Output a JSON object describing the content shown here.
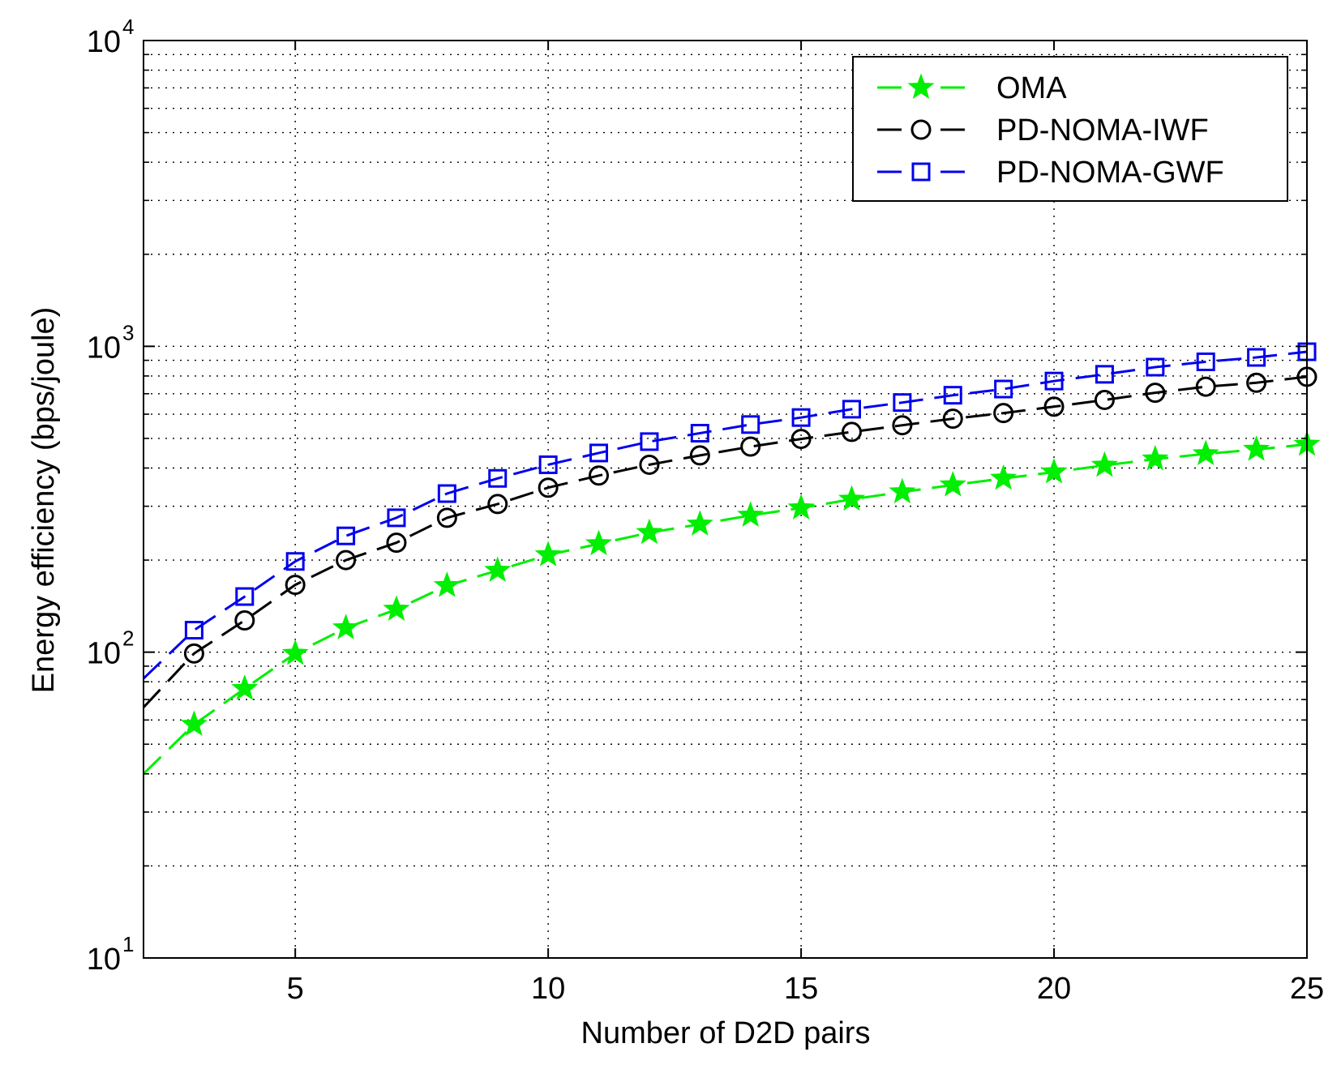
{
  "chart_data": {
    "type": "line",
    "xlabel": "Number of D2D pairs",
    "ylabel": "Energy efficiency (bps/joule)",
    "xlim": [
      2,
      25
    ],
    "ylim": [
      10,
      10000
    ],
    "yscale": "log",
    "grid": true,
    "legend_position": "top-right",
    "x_ticks": [
      5,
      10,
      15,
      20,
      25
    ],
    "x_tick_labels": [
      "5",
      "10",
      "15",
      "20",
      "25"
    ],
    "y_ticks": [
      {
        "value": 10,
        "base": "10",
        "exp": "1"
      },
      {
        "value": 100,
        "base": "10",
        "exp": "2"
      },
      {
        "value": 1000,
        "base": "10",
        "exp": "3"
      },
      {
        "value": 10000,
        "base": "10",
        "exp": "4"
      }
    ],
    "x": [
      2,
      3,
      4,
      5,
      6,
      7,
      8,
      9,
      10,
      11,
      12,
      13,
      14,
      15,
      16,
      17,
      18,
      19,
      20,
      21,
      22,
      23,
      24,
      25
    ],
    "series": [
      {
        "name": "OMA",
        "color": "#00ee00",
        "marker": "star",
        "values": [
          40,
          58,
          76,
          99,
          120,
          138,
          165,
          185,
          208,
          226,
          246,
          262,
          280,
          296,
          316,
          334,
          352,
          370,
          388,
          408,
          428,
          445,
          460,
          478
        ]
      },
      {
        "name": "PD-NOMA-IWF",
        "color": "#000000",
        "marker": "circle",
        "values": [
          66,
          99,
          127,
          166,
          200,
          228,
          275,
          305,
          345,
          378,
          410,
          440,
          470,
          498,
          525,
          552,
          580,
          605,
          635,
          668,
          705,
          738,
          760,
          795
        ]
      },
      {
        "name": "PD-NOMA-GWF",
        "color": "#0000ee",
        "marker": "square",
        "values": [
          82,
          118,
          152,
          198,
          240,
          275,
          330,
          370,
          410,
          448,
          488,
          520,
          555,
          585,
          623,
          655,
          692,
          725,
          770,
          810,
          855,
          890,
          920,
          960
        ]
      }
    ]
  }
}
